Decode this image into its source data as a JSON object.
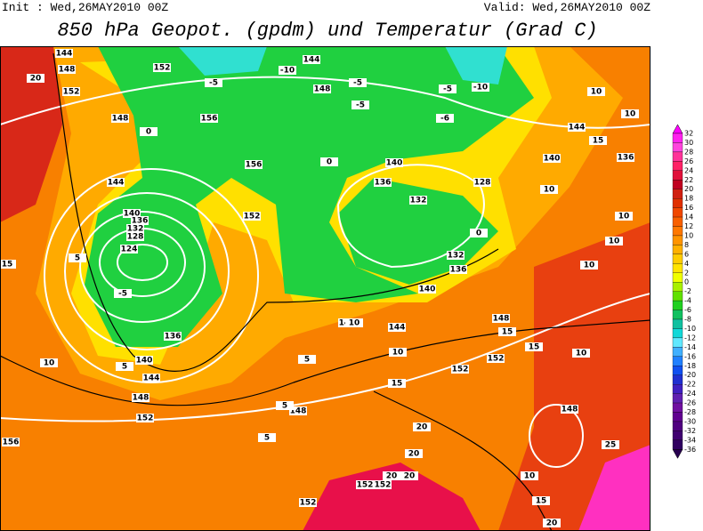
{
  "header": {
    "init": "Init : Wed,26MAY2010 00Z",
    "valid": "Valid: Wed,26MAY2010 00Z",
    "title": "850 hPa Geopot. (gpdm) und Temperatur (Grad C)"
  },
  "colorbar": {
    "labels": [
      32,
      30,
      28,
      26,
      24,
      22,
      20,
      18,
      16,
      14,
      12,
      10,
      8,
      6,
      4,
      2,
      0,
      -2,
      -4,
      -6,
      -8,
      -10,
      -12,
      -14,
      -16,
      -18,
      -20,
      -22,
      -24,
      -26,
      -28,
      -30,
      -32,
      -34,
      -36
    ],
    "colors": [
      "#ff00ff",
      "#ff22ee",
      "#ff44dd",
      "#ff3399",
      "#ff2266",
      "#e0103a",
      "#c00020",
      "#d02010",
      "#e03000",
      "#f04800",
      "#f86000",
      "#ff7800",
      "#ff9400",
      "#ffb000",
      "#ffcc00",
      "#ffe400",
      "#f0ff00",
      "#a8f000",
      "#60e000",
      "#20d020",
      "#10c060",
      "#10c0a0",
      "#10d8d8",
      "#60e8ff",
      "#40b0ff",
      "#2080ff",
      "#1050f0",
      "#2030d0",
      "#4020c0",
      "#6020b0",
      "#7010a0",
      "#600090",
      "#500080",
      "#400070",
      "#300060",
      "#280050"
    ]
  },
  "map": {
    "geopotential_labels": [
      144,
      148,
      152,
      148,
      144,
      140,
      136,
      132,
      128,
      124,
      136,
      140,
      144,
      148,
      152,
      156,
      152,
      156,
      156,
      152,
      144,
      148,
      140,
      136,
      132,
      128,
      132,
      136,
      140,
      144,
      144,
      148,
      152,
      152,
      148,
      140,
      144,
      136,
      148,
      152,
      152,
      152
    ],
    "temperature_labels": [
      20,
      -5,
      -5,
      -10,
      -5,
      -5,
      -5,
      -10,
      -6,
      10,
      10,
      15,
      10,
      10,
      10,
      10,
      15,
      10,
      5,
      5,
      10,
      10,
      15,
      15,
      15,
      10,
      20,
      20,
      20,
      20,
      20,
      25,
      10,
      15,
      5,
      5,
      5,
      0,
      0,
      0
    ]
  }
}
